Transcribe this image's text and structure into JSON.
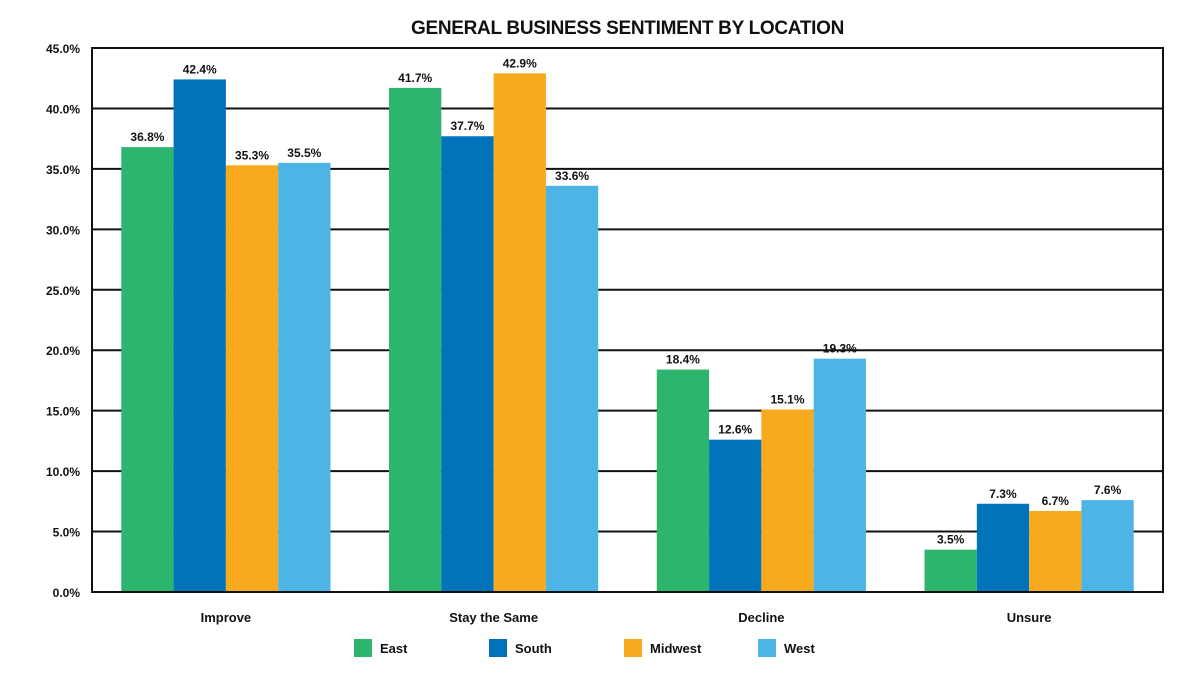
{
  "chart_data": {
    "type": "bar",
    "title": "GENERAL BUSINESS SENTIMENT BY LOCATION",
    "xlabel": "",
    "ylabel": "",
    "categories": [
      "Improve",
      "Stay the Same",
      "Decline",
      "Unsure"
    ],
    "series": [
      {
        "name": "East",
        "color": "#2DB56E",
        "values": [
          36.8,
          41.7,
          18.4,
          3.5
        ]
      },
      {
        "name": "South",
        "color": "#0073BA",
        "values": [
          42.4,
          37.7,
          12.6,
          7.3
        ]
      },
      {
        "name": "Midwest",
        "color": "#F7AA1E",
        "values": [
          35.3,
          42.9,
          15.1,
          6.7
        ]
      },
      {
        "name": "West",
        "color": "#4DB4E6",
        "values": [
          35.5,
          33.6,
          19.3,
          7.6
        ]
      }
    ],
    "ylim": [
      0,
      45
    ],
    "yticks": [
      "0.0%",
      "5.0%",
      "10.0%",
      "15.0%",
      "20.0%",
      "25.0%",
      "30.0%",
      "35.0%",
      "40.0%",
      "45.0%"
    ],
    "data_label_format": "%",
    "grid": true,
    "legend": "bottom"
  }
}
